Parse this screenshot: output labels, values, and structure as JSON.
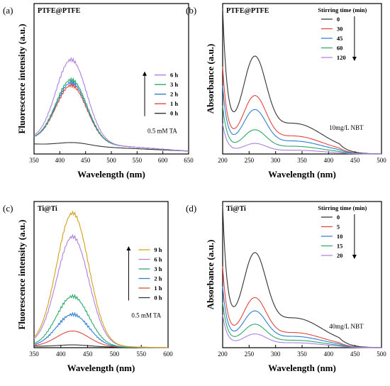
{
  "chart_data": [
    {
      "id": "a",
      "letter": "(a)",
      "tag": "PTFE@PTFE",
      "type": "line",
      "xlabel": "Wavelength (nm)",
      "ylabel": "Fluorescence intensity (a.u.)",
      "xlim": [
        350,
        650
      ],
      "xticks": [
        350,
        400,
        450,
        500,
        550,
        600,
        650
      ],
      "ylim": [
        0,
        1
      ],
      "annotation": "0.5 mM TA",
      "legend_position": "right",
      "legend_arrow": "up",
      "legend_title": "",
      "series": [
        {
          "name": "0 h",
          "color": "#333333",
          "peak": 0.08,
          "base_start": 0.07,
          "base_end": 0.02
        },
        {
          "name": "1 h",
          "color": "#e0473f",
          "peak": 0.48,
          "base_start": 0.1,
          "base_end": 0.02
        },
        {
          "name": "2 h",
          "color": "#2f7fd0",
          "peak": 0.5,
          "base_start": 0.1,
          "base_end": 0.02
        },
        {
          "name": "3 h",
          "color": "#2fa86a",
          "peak": 0.52,
          "base_start": 0.1,
          "base_end": 0.02
        },
        {
          "name": "6 h",
          "color": "#b07fe0",
          "peak": 0.66,
          "base_start": 0.1,
          "base_end": 0.02
        }
      ]
    },
    {
      "id": "b",
      "letter": "(b)",
      "tag": "PTFE@PTFE",
      "type": "line",
      "xlabel": "Wavelength (nm)",
      "ylabel": "Absorbance (a.u.)",
      "xlim": [
        200,
        500
      ],
      "xticks": [
        200,
        250,
        300,
        350,
        400,
        450,
        500
      ],
      "ylim": [
        0,
        1
      ],
      "annotation": "10mg/L NBT",
      "legend_position": "top-right",
      "legend_arrow": "down",
      "legend_title": "Stirring time (min)",
      "series": [
        {
          "name": "0",
          "color": "#333333",
          "peak": 0.57,
          "trough": 0.45,
          "start": 0.92,
          "shoulder": 0.12
        },
        {
          "name": "30",
          "color": "#e0473f",
          "peak": 0.34,
          "trough": 0.28,
          "start": 0.55,
          "shoulder": 0.07
        },
        {
          "name": "45",
          "color": "#2f7fd0",
          "peak": 0.26,
          "trough": 0.22,
          "start": 0.43,
          "shoulder": 0.05
        },
        {
          "name": "60",
          "color": "#2fa86a",
          "peak": 0.14,
          "trough": 0.12,
          "start": 0.31,
          "shoulder": 0.03
        },
        {
          "name": "120",
          "color": "#b07fe0",
          "peak": 0.06,
          "trough": 0.05,
          "start": 0.2,
          "shoulder": 0.015
        }
      ]
    },
    {
      "id": "c",
      "letter": "(c)",
      "tag": "Ti@Ti",
      "type": "line",
      "xlabel": "Wavelength (nm)",
      "ylabel": "Fluorescence intensity (a.u.)",
      "xlim": [
        350,
        600
      ],
      "xticks": [
        350,
        400,
        450,
        500,
        550,
        600
      ],
      "ylim": [
        0,
        1
      ],
      "annotation": "0.5 mM TA",
      "legend_position": "right",
      "legend_arrow": "up",
      "legend_title": "",
      "series": [
        {
          "name": "0 h",
          "color": "#333333",
          "peak": 0.02,
          "base_start": 0.01,
          "base_end": 0.0
        },
        {
          "name": "1 h",
          "color": "#e0473f",
          "peak": 0.12,
          "base_start": 0.01,
          "base_end": 0.0
        },
        {
          "name": "2 h",
          "color": "#2f7fd0",
          "peak": 0.24,
          "base_start": 0.01,
          "base_end": 0.0
        },
        {
          "name": "3 h",
          "color": "#2fa86a",
          "peak": 0.37,
          "base_start": 0.01,
          "base_end": 0.0
        },
        {
          "name": "6 h",
          "color": "#b07fe0",
          "peak": 0.8,
          "base_start": 0.02,
          "base_end": 0.0
        },
        {
          "name": "9 h",
          "color": "#d4a017",
          "peak": 0.97,
          "base_start": 0.02,
          "base_end": 0.0
        }
      ]
    },
    {
      "id": "d",
      "letter": "(d)",
      "tag": "Ti@Ti",
      "type": "line",
      "xlabel": "Wavelength (nm)",
      "ylabel": "Absorbance (a.u.)",
      "xlim": [
        200,
        500
      ],
      "xticks": [
        200,
        250,
        300,
        350,
        400,
        450,
        500
      ],
      "ylim": [
        0,
        1
      ],
      "annotation": "40mg/L NBT",
      "legend_position": "top-right",
      "legend_arrow": "down",
      "legend_title": "Stirring time (min)",
      "series": [
        {
          "name": "0",
          "color": "#333333",
          "peak": 0.57,
          "trough": 0.45,
          "start": 0.92,
          "shoulder": 0.12
        },
        {
          "name": "5",
          "color": "#e0473f",
          "peak": 0.3,
          "trough": 0.26,
          "start": 0.53,
          "shoulder": 0.06
        },
        {
          "name": "10",
          "color": "#2f7fd0",
          "peak": 0.22,
          "trough": 0.19,
          "start": 0.4,
          "shoulder": 0.045
        },
        {
          "name": "15",
          "color": "#2fa86a",
          "peak": 0.14,
          "trough": 0.12,
          "start": 0.3,
          "shoulder": 0.03
        },
        {
          "name": "20",
          "color": "#b07fe0",
          "peak": 0.08,
          "trough": 0.07,
          "start": 0.22,
          "shoulder": 0.02
        }
      ]
    }
  ]
}
